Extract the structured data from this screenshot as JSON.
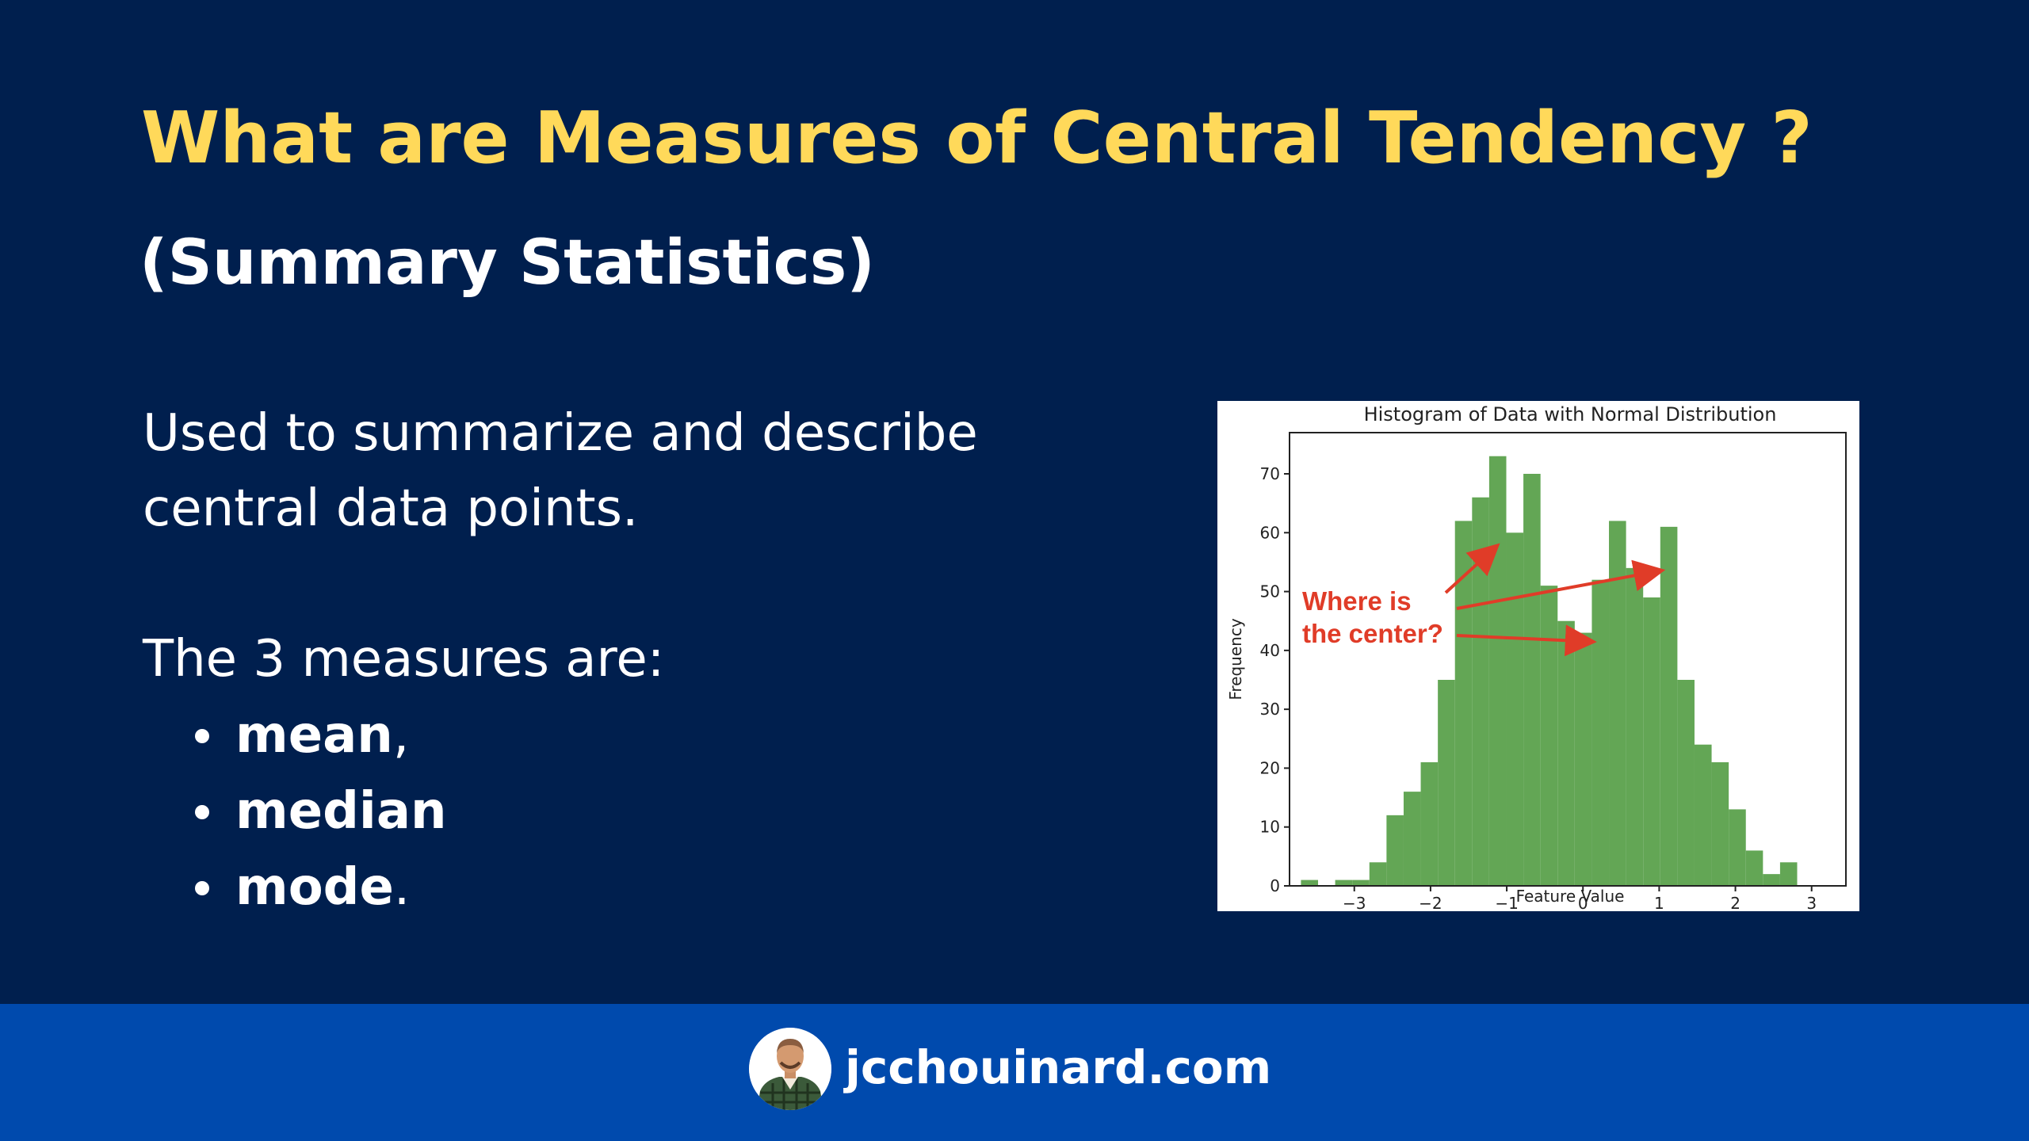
{
  "slide": {
    "title": "What are Measures of Central Tendency ?",
    "subtitle": "(Summary Statistics)",
    "intro_line1": "Used to summarize and describe",
    "intro_line2": "central data points.",
    "lead": "The 3 measures are:",
    "measures": [
      {
        "label": "mean",
        "punct": ","
      },
      {
        "label": "median",
        "punct": ""
      },
      {
        "label": "mode",
        "punct": "."
      }
    ]
  },
  "footer": {
    "site": "jcchouinard.com",
    "avatar_icon": "person-avatar-icon"
  },
  "colors": {
    "background": "#001f4e",
    "title": "#ffd95a",
    "footer": "#004aad",
    "bars": "#63a655",
    "annotation": "#e03c28"
  },
  "chart_data": {
    "type": "bar",
    "title": "Histogram of Data with Normal Distribution",
    "xlabel": "Feature Value",
    "ylabel": "Frequency",
    "xlim": [
      -3.85,
      3.45
    ],
    "ylim": [
      0,
      77
    ],
    "xticks": [
      -3,
      -2,
      -1,
      0,
      1,
      2,
      3
    ],
    "xtick_labels": [
      "−3",
      "−2",
      "−1",
      "0",
      "1",
      "2",
      "3"
    ],
    "yticks": [
      0,
      10,
      20,
      30,
      40,
      50,
      60,
      70
    ],
    "bin_start": -3.7,
    "bin_width": 0.2245,
    "values": [
      1,
      0,
      1,
      1,
      4,
      12,
      16,
      21,
      35,
      62,
      66,
      73,
      60,
      70,
      51,
      45,
      43,
      52,
      62,
      54,
      49,
      61,
      35,
      24,
      21,
      13,
      6,
      2,
      4
    ],
    "annotation": {
      "line1": "Where is",
      "line2": "the center?",
      "arrow_targets": [
        {
          "x": -1.15,
          "y": 57.5
        },
        {
          "x": 1.0,
          "y": 53.5
        },
        {
          "x": 0.1,
          "y": 41.5
        }
      ]
    },
    "grid": false,
    "legend": "none"
  }
}
